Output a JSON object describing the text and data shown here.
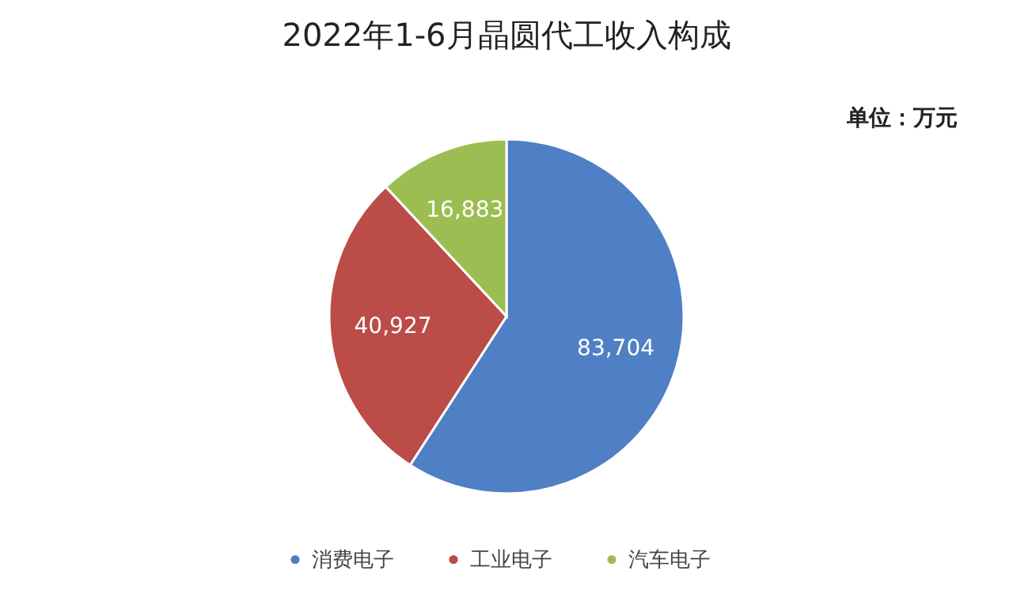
{
  "chart_data": {
    "type": "pie",
    "title": "2022年1-6月晶圆代工收入构成",
    "subtitle": "单位：万元",
    "categories": [
      "消费电子",
      "工业电子",
      "汽车电子"
    ],
    "values": [
      83704,
      40927,
      16883
    ],
    "colors": [
      "#4f7fc4",
      "#bb4c48",
      "#9cbd52"
    ],
    "value_labels": [
      "83,704",
      "40,927",
      "16,883"
    ],
    "legend": "bottom"
  }
}
